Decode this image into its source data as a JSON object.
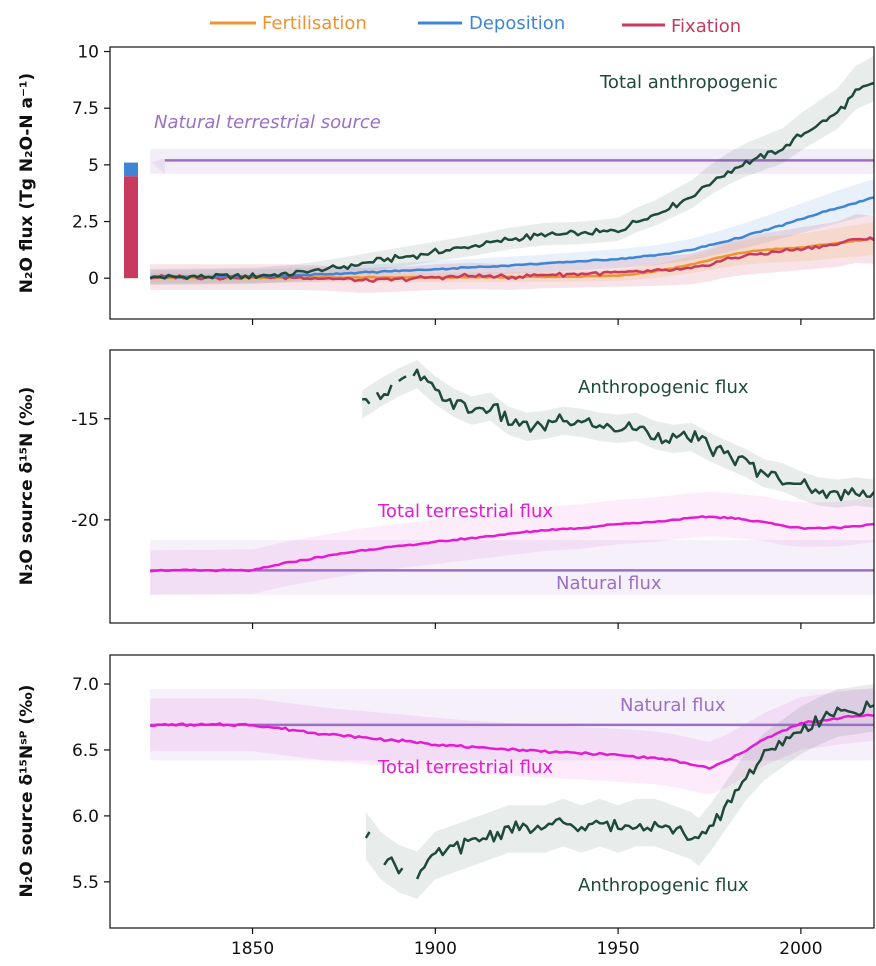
{
  "colors": {
    "fertilisation": "#f0922e",
    "deposition": "#3f85d6",
    "fixation": "#c83a5e",
    "anthropogenic": "#1f4a3a",
    "natural": "#9b6fc6",
    "total_terrestrial": "#e41bd2"
  },
  "legend": [
    "Fertilisation",
    "Deposition",
    "Fixation"
  ],
  "chart_data": [
    {
      "type": "line",
      "ylabel": "N₂O flux (Tg N₂O-N a⁻¹)",
      "xlim": [
        1811,
        2020
      ],
      "ylim": [
        -1.8,
        10.2
      ],
      "yticks": [
        0,
        2.5,
        5,
        7.5,
        10
      ],
      "ytick_labels": [
        "0",
        "2.5",
        "5",
        "7.5",
        "10"
      ],
      "xticks": [
        1850,
        1900,
        1950,
        2000
      ],
      "annotations": [
        "Total anthropogenic",
        "Natural terrestrial source"
      ],
      "natural_source": {
        "value": 5.2,
        "band": [
          4.6,
          5.7
        ],
        "x": [
          1822,
          2020
        ]
      },
      "bar": {
        "x": 1822,
        "fixation": 4.5,
        "deposition": 0.6,
        "total": 5.1
      },
      "series": [
        {
          "name": "Total anthropogenic",
          "x": [
            1822,
            1850,
            1860,
            1870,
            1880,
            1890,
            1900,
            1910,
            1920,
            1930,
            1940,
            1950,
            1955,
            1960,
            1965,
            1970,
            1975,
            1980,
            1985,
            1990,
            1995,
            2000,
            2005,
            2010,
            2015,
            2020
          ],
          "values": [
            0.05,
            0.1,
            0.2,
            0.4,
            0.65,
            0.9,
            1.15,
            1.4,
            1.7,
            1.9,
            1.95,
            2.1,
            2.5,
            2.8,
            3.2,
            3.6,
            4.2,
            4.7,
            5.1,
            5.4,
            5.7,
            6.3,
            6.8,
            7.3,
            8.2,
            8.6
          ]
        },
        {
          "name": "Deposition",
          "x": [
            1822,
            1850,
            1860,
            1870,
            1880,
            1890,
            1900,
            1910,
            1920,
            1930,
            1940,
            1950,
            1960,
            1970,
            1980,
            1990,
            2000,
            2010,
            2020
          ],
          "values": [
            0.05,
            0.08,
            0.12,
            0.18,
            0.25,
            0.32,
            0.4,
            0.48,
            0.56,
            0.65,
            0.75,
            0.85,
            1.0,
            1.25,
            1.65,
            2.1,
            2.6,
            3.1,
            3.55
          ]
        },
        {
          "name": "Fertilisation",
          "x": [
            1822,
            1900,
            1910,
            1920,
            1930,
            1940,
            1950,
            1955,
            1960,
            1965,
            1970,
            1975,
            1980,
            1985,
            1990,
            1995,
            2000,
            2005,
            2010,
            2015,
            2020
          ],
          "values": [
            0.02,
            0.03,
            0.04,
            0.05,
            0.06,
            0.08,
            0.12,
            0.2,
            0.3,
            0.45,
            0.6,
            0.8,
            1.0,
            1.15,
            1.25,
            1.3,
            1.35,
            1.45,
            1.55,
            1.65,
            1.75
          ]
        },
        {
          "name": "Fixation",
          "x": [
            1822,
            1860,
            1870,
            1880,
            1890,
            1900,
            1910,
            1920,
            1930,
            1940,
            1950,
            1960,
            1970,
            1975,
            1980,
            1985,
            1990,
            1995,
            2000,
            2005,
            2010,
            2015,
            2020
          ],
          "values": [
            0.05,
            0.05,
            0.0,
            -0.1,
            -0.05,
            0.05,
            0.1,
            0.05,
            0.15,
            0.2,
            0.25,
            0.3,
            0.4,
            0.6,
            0.85,
            1.0,
            1.1,
            1.2,
            1.3,
            1.4,
            1.5,
            1.75,
            1.7
          ]
        }
      ]
    },
    {
      "type": "line",
      "ylabel": "N₂O source δ¹⁵N (‰)",
      "xlim": [
        1811,
        2020
      ],
      "ylim": [
        -25.1,
        -11.6
      ],
      "yticks": [
        -15,
        -20
      ],
      "ytick_labels": [
        "-15",
        "-20"
      ],
      "xticks": [
        1850,
        1900,
        1950,
        2000
      ],
      "annotations": [
        "Anthropogenic flux",
        "Total terrestrial flux",
        "Natural flux"
      ],
      "natural_flux": {
        "value": -22.5,
        "band": [
          -23.7,
          -21.0
        ],
        "x": [
          1822,
          2020
        ]
      },
      "series": [
        {
          "name": "Anthropogenic flux",
          "x": [
            1880,
            1885,
            1890,
            1895,
            1900,
            1905,
            1910,
            1915,
            1920,
            1925,
            1930,
            1935,
            1940,
            1945,
            1950,
            1955,
            1960,
            1965,
            1970,
            1975,
            1980,
            1985,
            1990,
            1995,
            2000,
            2005,
            2010,
            2015,
            2020
          ],
          "values": [
            -14.3,
            -13.7,
            -13.2,
            -12.8,
            -13.6,
            -14.2,
            -14.6,
            -14.4,
            -15.1,
            -15.4,
            -15.3,
            -15.1,
            -15.2,
            -15.4,
            -15.5,
            -15.4,
            -15.8,
            -16.0,
            -15.9,
            -16.4,
            -16.8,
            -17.2,
            -17.7,
            -17.9,
            -18.3,
            -18.6,
            -18.7,
            -18.6,
            -18.7
          ]
        },
        {
          "name": "Total terrestrial flux",
          "x": [
            1822,
            1850,
            1860,
            1870,
            1880,
            1890,
            1900,
            1910,
            1920,
            1930,
            1940,
            1950,
            1960,
            1970,
            1975,
            1980,
            1985,
            1990,
            1995,
            2000,
            2010,
            2020
          ],
          "values": [
            -22.5,
            -22.5,
            -22.1,
            -21.8,
            -21.5,
            -21.3,
            -21.1,
            -20.9,
            -20.7,
            -20.5,
            -20.4,
            -20.2,
            -20.1,
            -19.9,
            -19.85,
            -19.9,
            -20.0,
            -20.1,
            -20.3,
            -20.4,
            -20.4,
            -20.2
          ]
        }
      ]
    },
    {
      "type": "line",
      "ylabel": "N₂O source δ¹⁵Nˢᴾ (‰)",
      "xlim": [
        1811,
        2020
      ],
      "ylim": [
        5.15,
        7.22
      ],
      "yticks": [
        5.5,
        6.0,
        6.5,
        7.0
      ],
      "ytick_labels": [
        "5.5",
        "6.0",
        "6.5",
        "7.0"
      ],
      "xticks": [
        1850,
        1900,
        1950,
        2000
      ],
      "xtick_labels": [
        "1850",
        "1900",
        "1950",
        "2000"
      ],
      "annotations": [
        "Natural flux",
        "Total terrestrial flux",
        "Anthropogenic flux"
      ],
      "natural_flux": {
        "value": 6.69,
        "band": [
          6.42,
          6.96
        ],
        "x": [
          1822,
          2020
        ]
      },
      "series": [
        {
          "name": "Anthropogenic flux",
          "x": [
            1881,
            1885,
            1890,
            1895,
            1900,
            1905,
            1910,
            1915,
            1920,
            1925,
            1930,
            1935,
            1940,
            1945,
            1950,
            1955,
            1960,
            1965,
            1970,
            1972,
            1975,
            1980,
            1985,
            1990,
            1995,
            2000,
            2005,
            2010,
            2015,
            2020
          ],
          "values": [
            5.85,
            5.7,
            5.6,
            5.55,
            5.7,
            5.75,
            5.8,
            5.85,
            5.9,
            5.9,
            5.9,
            5.95,
            5.9,
            5.95,
            5.9,
            5.95,
            5.95,
            5.9,
            5.85,
            5.8,
            5.9,
            6.1,
            6.3,
            6.45,
            6.55,
            6.65,
            6.72,
            6.78,
            6.8,
            6.82
          ]
        },
        {
          "name": "Total terrestrial flux",
          "x": [
            1822,
            1850,
            1870,
            1890,
            1910,
            1930,
            1950,
            1960,
            1965,
            1970,
            1975,
            1980,
            1985,
            1990,
            1995,
            2000,
            2010,
            2020
          ],
          "values": [
            6.69,
            6.69,
            6.62,
            6.57,
            6.52,
            6.49,
            6.46,
            6.44,
            6.42,
            6.39,
            6.36,
            6.42,
            6.5,
            6.58,
            6.64,
            6.7,
            6.74,
            6.77
          ]
        }
      ]
    }
  ]
}
